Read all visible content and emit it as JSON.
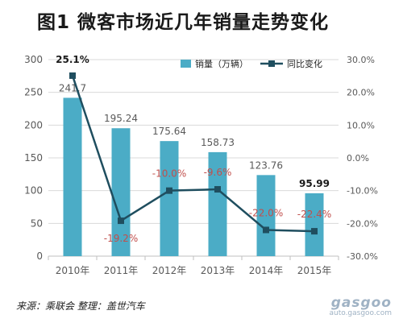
{
  "header": {
    "title": "图1  微客市场近几年销量走势变化"
  },
  "footer": {
    "source": "来源：乘联会  整理：盖世汽车"
  },
  "watermark": {
    "brand": "gasgoo",
    "url": "auto.gasgoo.com"
  },
  "colors": {
    "bar": "#4bacc6",
    "line": "#1f4e5f",
    "negative_label": "#c0504d",
    "axis_text": "#595959",
    "grid": "#d9d9d9"
  },
  "chart_data": {
    "type": "bar",
    "categories": [
      "2010年",
      "2011年",
      "2012年",
      "2013年",
      "2014年",
      "2015年"
    ],
    "series": [
      {
        "name": "销量（万辆）",
        "type": "bar",
        "axis": "left",
        "values": [
          241.7,
          195.24,
          175.64,
          158.73,
          123.76,
          95.99
        ],
        "labels": [
          "241.7",
          "195.24",
          "175.64",
          "158.73",
          "123.76",
          "95.99"
        ]
      },
      {
        "name": "同比变化",
        "type": "line",
        "axis": "right",
        "values": [
          25.1,
          -19.2,
          -10.0,
          -9.6,
          -22.0,
          -22.4
        ],
        "labels": [
          "25.1%",
          "-19.2%",
          "-10.0%",
          "-9.6%",
          "-22.0%",
          "-22.4%"
        ]
      }
    ],
    "y_left": {
      "range": [
        0,
        300
      ],
      "ticks": [
        "0",
        "50",
        "100",
        "150",
        "200",
        "250",
        "300"
      ]
    },
    "y_right": {
      "range": [
        -30,
        30
      ],
      "ticks": [
        "-30.0%",
        "-20.0%",
        "-10.0%",
        "0.0%",
        "10.0%",
        "20.0%",
        "30.0%"
      ]
    },
    "grid": true,
    "legend_position": "top-right"
  }
}
